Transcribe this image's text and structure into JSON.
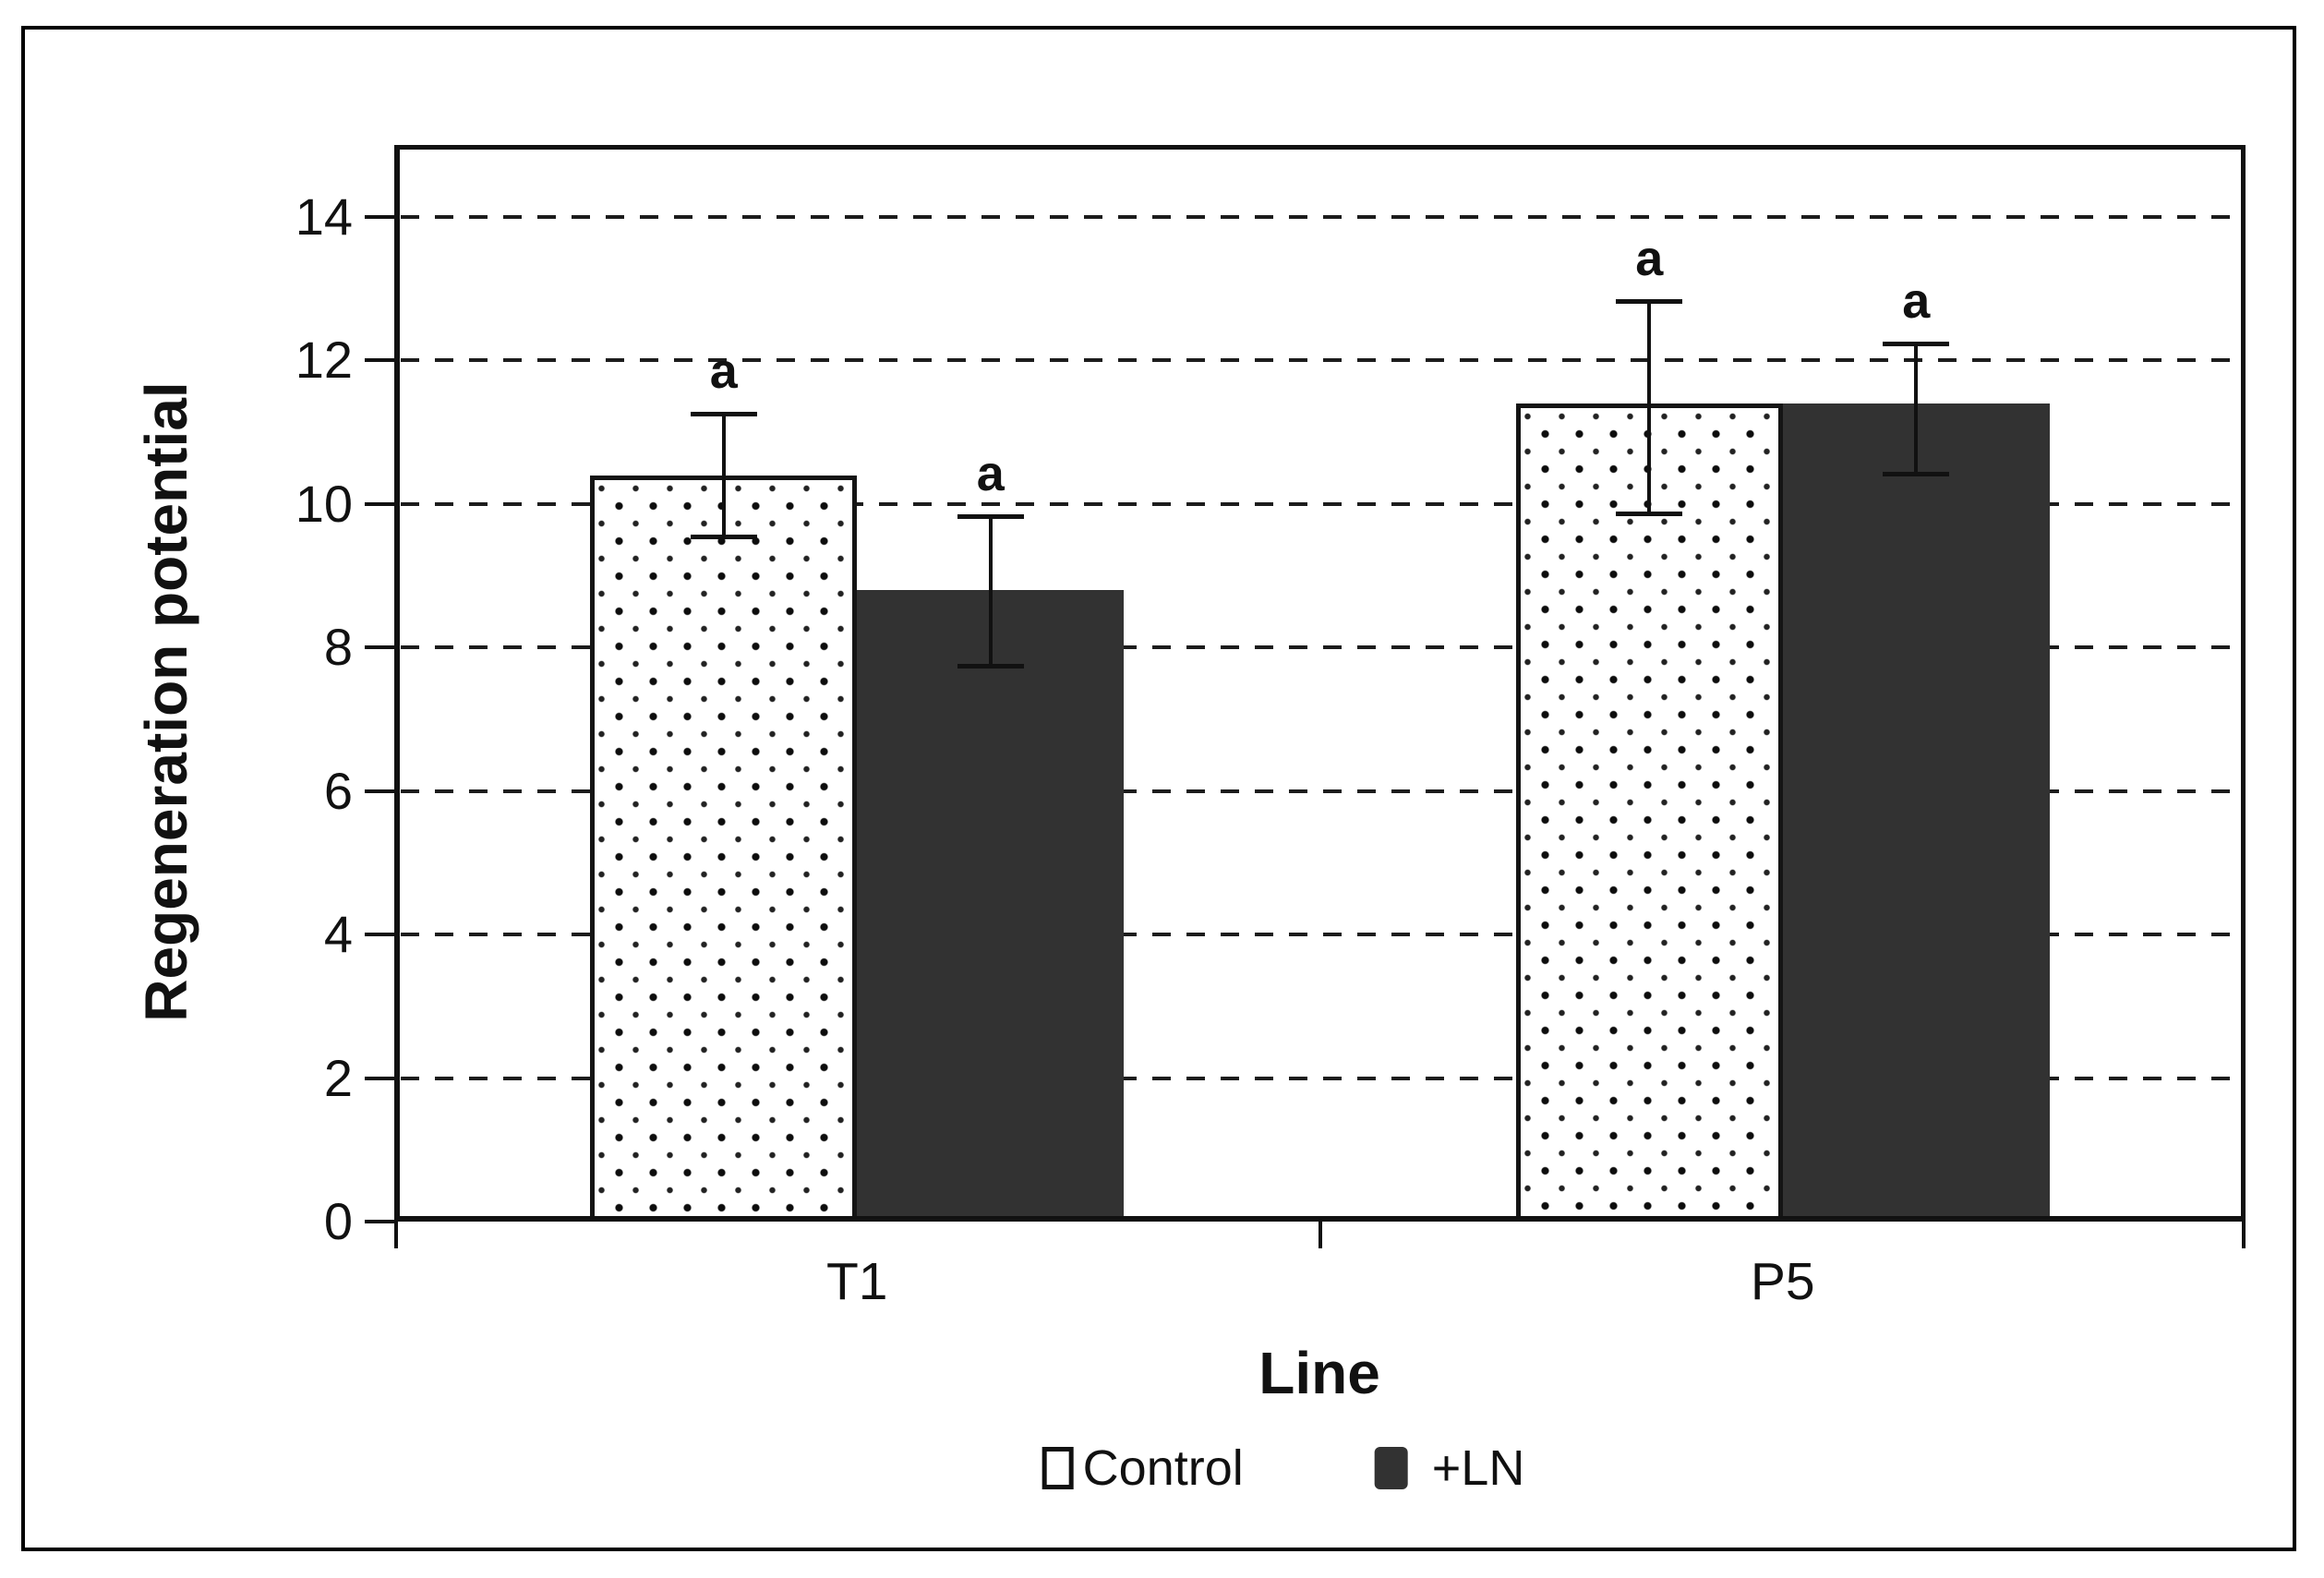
{
  "figure": {
    "background": "#ffffff",
    "border_color": "#000000"
  },
  "chart_data": {
    "type": "bar",
    "title": "",
    "xlabel": "Line",
    "ylabel": "Regeneration potential",
    "categories": [
      "T1",
      "P5"
    ],
    "series": [
      {
        "name": "Control",
        "fill": "white-dotted-pattern",
        "values": [
          10.4,
          11.4
        ],
        "error_low": [
          9.55,
          9.87
        ],
        "error_high": [
          11.26,
          12.83
        ],
        "point_labels": [
          "a",
          "a"
        ]
      },
      {
        "name": "+LN",
        "fill": "#323232",
        "values": [
          8.8,
          11.4
        ],
        "error_low": [
          7.75,
          10.42
        ],
        "error_high": [
          9.83,
          12.24
        ],
        "point_labels": [
          "a",
          "a"
        ]
      }
    ],
    "ylim": [
      0,
      15
    ],
    "yticks": [
      0,
      2,
      4,
      6,
      8,
      10,
      12,
      14
    ],
    "grid": "horizontal-dashed",
    "legend_position": "bottom-center"
  }
}
